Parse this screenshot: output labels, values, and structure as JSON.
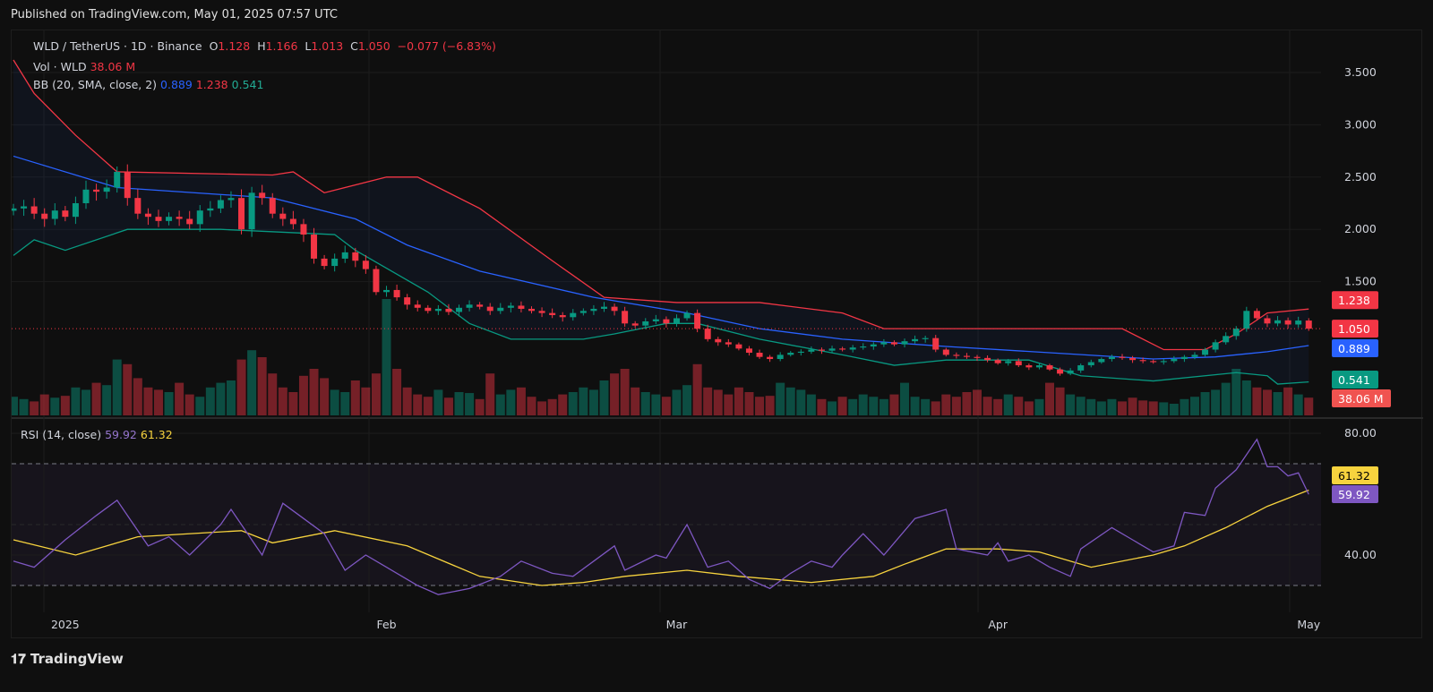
{
  "published": "Published on TradingView.com, May 01, 2025 07:57 UTC",
  "legend": {
    "symbol": "WLD / TetherUS · 1D · Binance",
    "o_label": "O",
    "o": "1.128",
    "h_label": "H",
    "h": "1.166",
    "l_label": "L",
    "l": "1.013",
    "c_label": "C",
    "c": "1.050",
    "change": "−0.077 (−6.83%)",
    "vol_label": "Vol · WLD",
    "vol": "38.06 M",
    "bb_label": "BB (20, SMA, close, 2)",
    "bb_mid": "0.889",
    "bb_upper": "1.238",
    "bb_lower": "0.541",
    "rsi_label": "RSI (14, close)",
    "rsi": "59.92",
    "rsi_ma": "61.32"
  },
  "logo": "TradingView",
  "colors": {
    "up": "#089981",
    "down": "#f23645",
    "bb_upper": "#f23645",
    "bb_mid": "#2962ff",
    "bb_lower": "#089981",
    "rsi": "#7e57c2",
    "rsi_ma": "#f7d33e"
  },
  "chart_data": [
    {
      "type": "candlestick",
      "title": "WLD / TetherUS 1D Binance",
      "x_start": "2024-12-27",
      "x_end": "2025-05-01",
      "x_ticks": [
        {
          "day": 5,
          "label": "2025"
        },
        {
          "day": 36,
          "label": "Feb"
        },
        {
          "day": 64,
          "label": "Mar"
        },
        {
          "day": 95,
          "label": "Apr"
        },
        {
          "day": 125,
          "label": "May"
        }
      ],
      "y_ticks": [
        "3.500",
        "3.000",
        "2.500",
        "2.000",
        "1.500"
      ],
      "y_tick_values": [
        3.5,
        3.0,
        2.5,
        2.0,
        1.5
      ],
      "ylim": [
        0.2,
        3.78
      ],
      "close": [
        2.2,
        2.22,
        2.15,
        2.1,
        2.18,
        2.12,
        2.25,
        2.38,
        2.36,
        2.4,
        2.55,
        2.3,
        2.15,
        2.12,
        2.08,
        2.12,
        2.1,
        2.05,
        2.18,
        2.2,
        2.28,
        2.3,
        2.0,
        2.35,
        2.3,
        2.15,
        2.1,
        2.05,
        1.95,
        1.72,
        1.65,
        1.72,
        1.78,
        1.7,
        1.62,
        1.4,
        1.42,
        1.35,
        1.28,
        1.25,
        1.22,
        1.24,
        1.21,
        1.25,
        1.28,
        1.26,
        1.22,
        1.25,
        1.27,
        1.24,
        1.22,
        1.2,
        1.18,
        1.16,
        1.2,
        1.22,
        1.24,
        1.26,
        1.22,
        1.1,
        1.08,
        1.12,
        1.14,
        1.1,
        1.15,
        1.2,
        1.05,
        0.95,
        0.92,
        0.9,
        0.86,
        0.82,
        0.78,
        0.76,
        0.8,
        0.82,
        0.83,
        0.85,
        0.84,
        0.86,
        0.85,
        0.87,
        0.88,
        0.9,
        0.92,
        0.9,
        0.93,
        0.95,
        0.96,
        0.85,
        0.8,
        0.79,
        0.78,
        0.77,
        0.75,
        0.72,
        0.74,
        0.7,
        0.68,
        0.7,
        0.66,
        0.62,
        0.65,
        0.7,
        0.73,
        0.76,
        0.78,
        0.77,
        0.75,
        0.74,
        0.73,
        0.74,
        0.76,
        0.78,
        0.8,
        0.85,
        0.92,
        0.98,
        1.05,
        1.22,
        1.15,
        1.1,
        1.13,
        1.09,
        1.128,
        1.05
      ],
      "volume_m": [
        40,
        35,
        30,
        45,
        38,
        42,
        60,
        55,
        70,
        65,
        120,
        110,
        80,
        60,
        55,
        50,
        70,
        45,
        40,
        60,
        70,
        75,
        120,
        140,
        125,
        90,
        60,
        50,
        85,
        100,
        80,
        55,
        50,
        75,
        60,
        90,
        250,
        100,
        60,
        45,
        40,
        55,
        38,
        50,
        48,
        35,
        90,
        45,
        55,
        60,
        40,
        30,
        35,
        45,
        50,
        60,
        55,
        75,
        90,
        100,
        60,
        50,
        45,
        40,
        55,
        65,
        110,
        60,
        55,
        45,
        60,
        50,
        40,
        42,
        70,
        60,
        55,
        45,
        35,
        30,
        40,
        35,
        45,
        40,
        35,
        45,
        70,
        40,
        35,
        30,
        45,
        40,
        50,
        55,
        40,
        35,
        45,
        40,
        30,
        35,
        70,
        60,
        45,
        40,
        35,
        30,
        35,
        30,
        38,
        32,
        30,
        28,
        25,
        35,
        40,
        50,
        55,
        70,
        100,
        75,
        60,
        55,
        50,
        60,
        45,
        38.06
      ],
      "bb_upper": [
        [
          0,
          3.62
        ],
        [
          2,
          3.3
        ],
        [
          6,
          2.9
        ],
        [
          10,
          2.55
        ],
        [
          25,
          2.52
        ],
        [
          27,
          2.55
        ],
        [
          30,
          2.35
        ],
        [
          36,
          2.5
        ],
        [
          39,
          2.5
        ],
        [
          45,
          2.2
        ],
        [
          52,
          1.7
        ],
        [
          57,
          1.35
        ],
        [
          64,
          1.3
        ],
        [
          72,
          1.3
        ],
        [
          80,
          1.2
        ],
        [
          84,
          1.05
        ],
        [
          107,
          1.05
        ],
        [
          111,
          0.85
        ],
        [
          115,
          0.85
        ],
        [
          118,
          1.0
        ],
        [
          121,
          1.2
        ],
        [
          125,
          1.238
        ]
      ],
      "bb_mid": [
        [
          0,
          2.7
        ],
        [
          10,
          2.4
        ],
        [
          25,
          2.3
        ],
        [
          33,
          2.1
        ],
        [
          38,
          1.85
        ],
        [
          45,
          1.6
        ],
        [
          56,
          1.35
        ],
        [
          65,
          1.2
        ],
        [
          72,
          1.05
        ],
        [
          80,
          0.95
        ],
        [
          90,
          0.88
        ],
        [
          100,
          0.82
        ],
        [
          110,
          0.76
        ],
        [
          116,
          0.78
        ],
        [
          121,
          0.83
        ],
        [
          125,
          0.889
        ]
      ],
      "bb_lower": [
        [
          0,
          1.75
        ],
        [
          2,
          1.9
        ],
        [
          5,
          1.8
        ],
        [
          11,
          2.0
        ],
        [
          20,
          2.0
        ],
        [
          31,
          1.95
        ],
        [
          33,
          1.8
        ],
        [
          40,
          1.4
        ],
        [
          44,
          1.1
        ],
        [
          48,
          0.95
        ],
        [
          55,
          0.95
        ],
        [
          58,
          1.0
        ],
        [
          63,
          1.1
        ],
        [
          66,
          1.1
        ],
        [
          72,
          0.95
        ],
        [
          80,
          0.8
        ],
        [
          85,
          0.7
        ],
        [
          90,
          0.75
        ],
        [
          98,
          0.75
        ],
        [
          103,
          0.6
        ],
        [
          110,
          0.55
        ],
        [
          118,
          0.63
        ],
        [
          121,
          0.6
        ],
        [
          122,
          0.52
        ],
        [
          125,
          0.541
        ]
      ],
      "last_labels": {
        "bb_upper": "1.238",
        "close": "1.050",
        "bb_mid": "0.889",
        "bb_lower": "0.541",
        "volume": "38.06 M"
      }
    },
    {
      "type": "line",
      "title": "RSI (14, close)",
      "ylim": [
        20,
        90
      ],
      "y_ticks": [
        "80.00",
        "40.00"
      ],
      "y_tick_values": [
        80,
        40
      ],
      "bands": [
        70,
        30
      ],
      "rsi": [
        [
          0,
          38
        ],
        [
          2,
          36
        ],
        [
          5,
          45
        ],
        [
          8,
          53
        ],
        [
          10,
          58
        ],
        [
          12,
          48
        ],
        [
          13,
          43
        ],
        [
          15,
          46
        ],
        [
          17,
          40
        ],
        [
          20,
          50
        ],
        [
          21,
          55
        ],
        [
          24,
          40
        ],
        [
          26,
          57
        ],
        [
          28,
          52
        ],
        [
          30,
          47
        ],
        [
          32,
          35
        ],
        [
          34,
          40
        ],
        [
          36,
          36
        ],
        [
          39,
          30
        ],
        [
          41,
          27
        ],
        [
          44,
          29
        ],
        [
          47,
          33
        ],
        [
          49,
          38
        ],
        [
          52,
          34
        ],
        [
          54,
          33
        ],
        [
          56,
          38
        ],
        [
          58,
          43
        ],
        [
          59,
          35
        ],
        [
          62,
          40
        ],
        [
          63,
          39
        ],
        [
          65,
          50
        ],
        [
          67,
          36
        ],
        [
          69,
          38
        ],
        [
          71,
          32
        ],
        [
          73,
          29
        ],
        [
          75,
          34
        ],
        [
          77,
          38
        ],
        [
          79,
          36
        ],
        [
          80,
          40
        ],
        [
          82,
          47
        ],
        [
          84,
          40
        ],
        [
          87,
          52
        ],
        [
          90,
          55
        ],
        [
          91,
          42
        ],
        [
          94,
          40
        ],
        [
          95,
          44
        ],
        [
          96,
          38
        ],
        [
          98,
          40
        ],
        [
          100,
          36
        ],
        [
          102,
          33
        ],
        [
          103,
          42
        ],
        [
          106,
          49
        ],
        [
          108,
          45
        ],
        [
          110,
          41
        ],
        [
          112,
          43
        ],
        [
          113,
          54
        ],
        [
          115,
          53
        ],
        [
          116,
          62
        ],
        [
          118,
          68
        ],
        [
          120,
          78
        ],
        [
          121,
          69
        ],
        [
          122,
          69
        ],
        [
          123,
          66
        ],
        [
          124,
          67
        ],
        [
          125,
          59.92
        ]
      ],
      "rsi_ma": [
        [
          0,
          45
        ],
        [
          6,
          40
        ],
        [
          12,
          46
        ],
        [
          22,
          48
        ],
        [
          25,
          44
        ],
        [
          31,
          48
        ],
        [
          38,
          43
        ],
        [
          45,
          33
        ],
        [
          51,
          30
        ],
        [
          55,
          31
        ],
        [
          59,
          33
        ],
        [
          65,
          35
        ],
        [
          70,
          33
        ],
        [
          77,
          31
        ],
        [
          83,
          33
        ],
        [
          86,
          37
        ],
        [
          90,
          42
        ],
        [
          95,
          42
        ],
        [
          99,
          41
        ],
        [
          104,
          36
        ],
        [
          110,
          40
        ],
        [
          113,
          43
        ],
        [
          117,
          49
        ],
        [
          121,
          56
        ],
        [
          125,
          61.32
        ]
      ],
      "last_labels": {
        "rsi_ma": "61.32",
        "rsi": "59.92"
      }
    }
  ]
}
